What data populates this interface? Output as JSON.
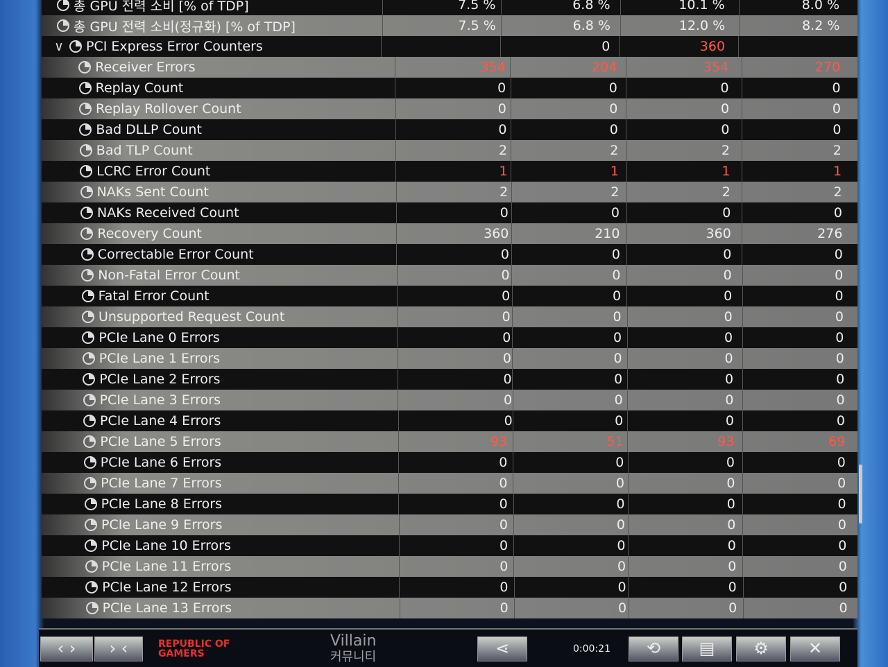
{
  "rows": [
    {
      "label": "총 GPU 전력 소비 [% of TDP]",
      "indent": 0,
      "values": [
        "7.5 %",
        "6.8 %",
        "10.1 %",
        "8.0 %"
      ]
    },
    {
      "label": "총 GPU 전력 소비(정규화) [% of TDP]",
      "indent": 0,
      "values": [
        "7.5 %",
        "6.8 %",
        "12.0 %",
        "8.2 %"
      ]
    },
    {
      "label": "PCI Express Error Counters",
      "indent": 0,
      "expanded": true,
      "values": [
        "",
        "0",
        "360",
        ""
      ],
      "red": [
        false,
        false,
        true,
        false
      ]
    },
    {
      "label": "Receiver Errors",
      "indent": 1,
      "values": [
        "354",
        "204",
        "354",
        "270"
      ],
      "red": [
        true,
        true,
        true,
        true
      ]
    },
    {
      "label": "Replay Count",
      "indent": 1,
      "values": [
        "0",
        "0",
        "0",
        "0"
      ]
    },
    {
      "label": "Replay Rollover Count",
      "indent": 1,
      "values": [
        "0",
        "0",
        "0",
        "0"
      ]
    },
    {
      "label": "Bad DLLP Count",
      "indent": 1,
      "values": [
        "0",
        "0",
        "0",
        "0"
      ]
    },
    {
      "label": "Bad TLP Count",
      "indent": 1,
      "values": [
        "2",
        "2",
        "2",
        "2"
      ]
    },
    {
      "label": "LCRC Error Count",
      "indent": 1,
      "values": [
        "1",
        "1",
        "1",
        "1"
      ],
      "red": [
        true,
        true,
        true,
        true
      ]
    },
    {
      "label": "NAKs Sent Count",
      "indent": 1,
      "values": [
        "2",
        "2",
        "2",
        "2"
      ]
    },
    {
      "label": "NAKs Received Count",
      "indent": 1,
      "values": [
        "0",
        "0",
        "0",
        "0"
      ]
    },
    {
      "label": "Recovery Count",
      "indent": 1,
      "values": [
        "360",
        "210",
        "360",
        "276"
      ]
    },
    {
      "label": "Correctable Error Count",
      "indent": 1,
      "values": [
        "0",
        "0",
        "0",
        "0"
      ]
    },
    {
      "label": "Non-Fatal Error Count",
      "indent": 1,
      "values": [
        "0",
        "0",
        "0",
        "0"
      ]
    },
    {
      "label": "Fatal Error Count",
      "indent": 1,
      "values": [
        "0",
        "0",
        "0",
        "0"
      ]
    },
    {
      "label": "Unsupported Request Count",
      "indent": 1,
      "values": [
        "0",
        "0",
        "0",
        "0"
      ]
    },
    {
      "label": "PCIe Lane 0 Errors",
      "indent": 1,
      "values": [
        "0",
        "0",
        "0",
        "0"
      ]
    },
    {
      "label": "PCIe Lane 1 Errors",
      "indent": 1,
      "values": [
        "0",
        "0",
        "0",
        "0"
      ]
    },
    {
      "label": "PCIe Lane 2 Errors",
      "indent": 1,
      "values": [
        "0",
        "0",
        "0",
        "0"
      ]
    },
    {
      "label": "PCIe Lane 3 Errors",
      "indent": 1,
      "values": [
        "0",
        "0",
        "0",
        "0"
      ]
    },
    {
      "label": "PCIe Lane 4 Errors",
      "indent": 1,
      "values": [
        "0",
        "0",
        "0",
        "0"
      ]
    },
    {
      "label": "PCIe Lane 5 Errors",
      "indent": 1,
      "values": [
        "93",
        "51",
        "93",
        "69"
      ],
      "red": [
        true,
        true,
        true,
        true
      ]
    },
    {
      "label": "PCIe Lane 6 Errors",
      "indent": 1,
      "values": [
        "0",
        "0",
        "0",
        "0"
      ]
    },
    {
      "label": "PCIe Lane 7 Errors",
      "indent": 1,
      "values": [
        "0",
        "0",
        "0",
        "0"
      ]
    },
    {
      "label": "PCIe Lane 8 Errors",
      "indent": 1,
      "values": [
        "0",
        "0",
        "0",
        "0"
      ]
    },
    {
      "label": "PCIe Lane 9 Errors",
      "indent": 1,
      "values": [
        "0",
        "0",
        "0",
        "0"
      ]
    },
    {
      "label": "PCIe Lane 10 Errors",
      "indent": 1,
      "values": [
        "0",
        "0",
        "0",
        "0"
      ]
    },
    {
      "label": "PCIe Lane 11 Errors",
      "indent": 1,
      "values": [
        "0",
        "0",
        "0",
        "0"
      ]
    },
    {
      "label": "PCIe Lane 12 Errors",
      "indent": 1,
      "values": [
        "0",
        "0",
        "0",
        "0"
      ]
    },
    {
      "label": "PCIe Lane 13 Errors",
      "indent": 1,
      "values": [
        "0",
        "0",
        "0",
        "0"
      ]
    }
  ],
  "toolbar": {
    "nav_prev_next": "‹ ›",
    "nav_collapse": "› ‹",
    "logo_line1": "REPUBLIC OF",
    "logo_line2": "GAMERS",
    "timer": "0:00:21",
    "share_icon": "share-icon",
    "reset_icon": "reset-clock-icon",
    "report_icon": "document-icon",
    "settings_icon": "gear-icon",
    "close_icon": "close-icon"
  },
  "colors": {
    "error_value": "#ff5a4a",
    "logo": "#e8302a"
  },
  "watermark": {
    "line1": "Villain",
    "line2": "커뮤니티"
  }
}
